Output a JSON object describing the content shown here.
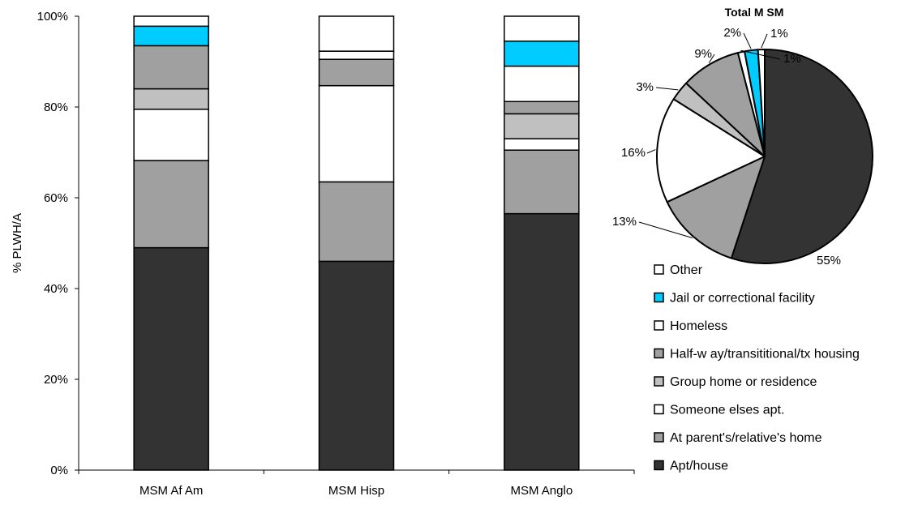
{
  "chart_data": [
    {
      "type": "bar",
      "stacked": true,
      "normalized": true,
      "categories": [
        "MSM Af Am",
        "MSM Hisp",
        "MSM Anglo"
      ],
      "ylabel": "% PLWH/A",
      "ylim": [
        0,
        100
      ],
      "yticks": [
        "0%",
        "20%",
        "40%",
        "60%",
        "80%",
        "100%"
      ],
      "grid": false,
      "series": [
        {
          "name": "Apt/house",
          "color": "#333333",
          "values": [
            49,
            46,
            56.5
          ]
        },
        {
          "name": "At parent's/relative's home",
          "color": "#a0a0a0",
          "values": [
            19.2,
            17.5,
            14
          ]
        },
        {
          "name": "Someone elses apt.",
          "color": "#ffffff",
          "values": [
            11.3,
            21.2,
            2.5
          ]
        },
        {
          "name": "Group home or residence",
          "color": "#c0c0c0",
          "values": [
            4.5,
            0,
            5.5
          ]
        },
        {
          "name": "Half-w ay/transititional/tx housing",
          "color": "#a0a0a0",
          "values": [
            9.5,
            5.8,
            2.7
          ]
        },
        {
          "name": "Homeless",
          "color": "#ffffff",
          "values": [
            0,
            1.8,
            7.8
          ]
        },
        {
          "name": "Jail or correctional facility",
          "color": "#00ccff",
          "values": [
            4.3,
            0,
            5.5
          ]
        },
        {
          "name": "Other",
          "color": "#ffffff",
          "values": [
            2.2,
            7.7,
            5.5
          ]
        }
      ]
    },
    {
      "type": "pie",
      "title": "Total M SM",
      "slices": [
        {
          "name": "Apt/house",
          "value": 55,
          "label": "55%",
          "color": "#333333"
        },
        {
          "name": "At parent's/relative's home",
          "value": 13,
          "label": "13%",
          "color": "#a0a0a0"
        },
        {
          "name": "Someone elses apt.",
          "value": 16,
          "label": "16%",
          "color": "#ffffff"
        },
        {
          "name": "Group home or residence",
          "value": 3,
          "label": "3%",
          "color": "#c0c0c0"
        },
        {
          "name": "Half-w ay/transititional/tx housing",
          "value": 9,
          "label": "9%",
          "color": "#a0a0a0"
        },
        {
          "name": "Homeless",
          "value": 1,
          "label": "1%",
          "color": "#ffffff"
        },
        {
          "name": "Jail or correctional facility",
          "value": 2,
          "label": "2%",
          "color": "#00ccff"
        },
        {
          "name": "Other",
          "value": 1,
          "label": "1%",
          "color": "#ffffff"
        }
      ]
    }
  ],
  "legend": {
    "placement": "right",
    "items": [
      {
        "label": "Other",
        "color": "#ffffff"
      },
      {
        "label": "Jail or correctional facility",
        "color": "#00ccff"
      },
      {
        "label": "Homeless",
        "color": "#ffffff"
      },
      {
        "label": "Half-w ay/transititional/tx housing",
        "color": "#a0a0a0"
      },
      {
        "label": "Group home or residence",
        "color": "#c0c0c0"
      },
      {
        "label": "Someone elses apt.",
        "color": "#ffffff"
      },
      {
        "label": "At parent's/relative's home",
        "color": "#a0a0a0"
      },
      {
        "label": "Apt/house",
        "color": "#333333"
      }
    ]
  }
}
